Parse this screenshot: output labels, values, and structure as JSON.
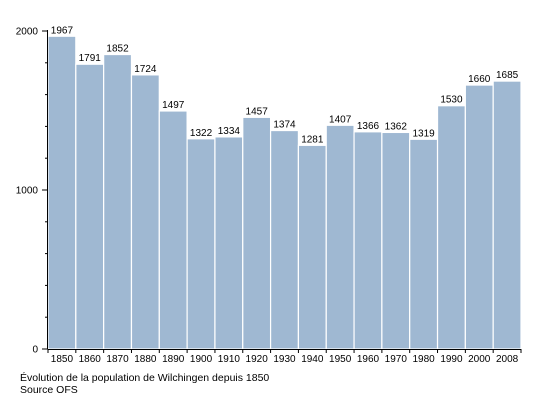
{
  "chart_data": {
    "type": "bar",
    "categories": [
      "1850",
      "1860",
      "1870",
      "1880",
      "1890",
      "1900",
      "1910",
      "1920",
      "1930",
      "1940",
      "1950",
      "1960",
      "1970",
      "1980",
      "1990",
      "2000",
      "2008"
    ],
    "values": [
      1967,
      1791,
      1852,
      1724,
      1497,
      1322,
      1334,
      1457,
      1374,
      1281,
      1407,
      1366,
      1362,
      1319,
      1530,
      1660,
      1685
    ],
    "y_ticks": [
      "0",
      "1000",
      "2000"
    ],
    "ylim": [
      0,
      2000
    ],
    "grid": false,
    "legend": "none",
    "colors": {
      "bar_fill": "#9fb8d2",
      "bar_stroke": "#ffffff",
      "axis": "#000000",
      "text": "#000000"
    }
  },
  "caption": {
    "line1": "Évolution de la population de Wilchingen depuis 1850",
    "line2": "Source OFS"
  }
}
